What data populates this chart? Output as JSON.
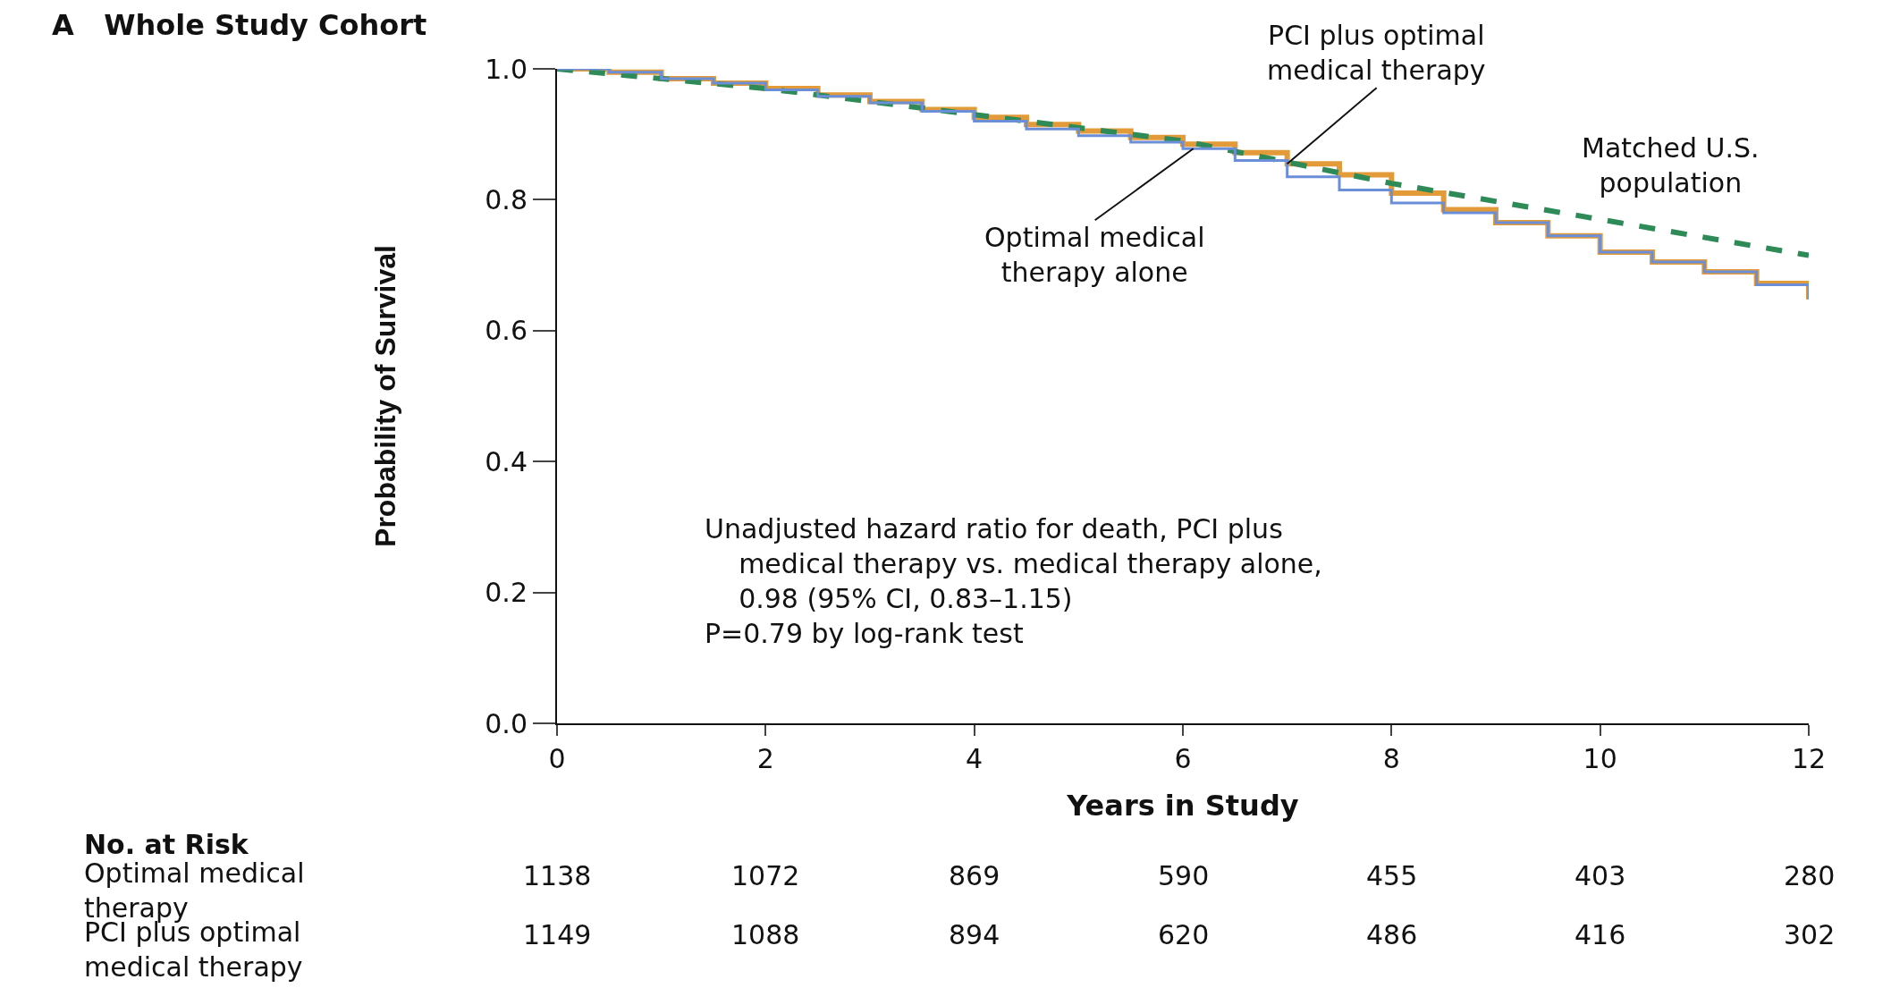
{
  "chart_data": {
    "type": "step",
    "title": "A   Whole Study Cohort",
    "xlabel": "Years in Study",
    "ylabel": "Probability of Survival",
    "x": [
      0,
      0.5,
      1,
      1.5,
      2,
      2.5,
      3,
      3.5,
      4,
      4.5,
      5,
      5.5,
      6,
      6.5,
      7,
      7.5,
      8,
      8.5,
      9,
      9.5,
      10,
      10.5,
      11,
      11.5,
      12
    ],
    "series": [
      {
        "color": "#6a8fd8",
        "values": [
          1,
          0.995,
          0.985,
          0.978,
          0.968,
          0.958,
          0.948,
          0.935,
          0.92,
          0.908,
          0.898,
          0.888,
          0.878,
          0.86,
          0.835,
          0.815,
          0.795,
          0.78,
          0.765,
          0.745,
          0.72,
          0.705,
          0.69,
          0.67,
          0.648
        ]
      },
      {
        "color": "#e39b3a",
        "values": [
          1,
          0.995,
          0.985,
          0.978,
          0.97,
          0.96,
          0.95,
          0.938,
          0.926,
          0.915,
          0.905,
          0.895,
          0.885,
          0.872,
          0.855,
          0.838,
          0.81,
          0.785,
          0.765,
          0.745,
          0.72,
          0.705,
          0.69,
          0.672,
          0.648
        ]
      },
      {
        "type": "line",
        "line_style": "dashed",
        "color": "#2e8b57",
        "x": [
          0,
          2,
          4,
          6,
          8,
          10,
          12
        ],
        "values": [
          1,
          0.97,
          0.93,
          0.89,
          0.825,
          0.77,
          0.715
        ]
      }
    ],
    "xlim": [
      0,
      12
    ],
    "xticks": [
      0,
      2,
      4,
      6,
      8,
      10,
      12
    ],
    "ylim": [
      0,
      1
    ],
    "yticks": [
      {
        "value": 0,
        "label": "0.0"
      },
      {
        "value": 0.2,
        "label": "0.2"
      },
      {
        "value": 0.4,
        "label": "0.4"
      },
      {
        "value": 0.6,
        "label": "0.6"
      },
      {
        "value": 0.8,
        "label": "0.8"
      },
      {
        "value": 1,
        "label": "1.0"
      }
    ],
    "grid": false,
    "marker": "none",
    "line_style": "solid",
    "annotations": [
      {
        "text": "Optimal medical\ntherapy alone",
        "x": 6.1,
        "y": 0.878
      },
      {
        "text": "PCI plus optimal\nmedical therapy",
        "x": 7,
        "y": 0.855
      },
      "Matched U.S.\npopulation",
      "Unadjusted hazard ratio for death, PCI plus\n    medical therapy vs. medical therapy alone,\n    0.98 (95% CI, 0.83–1.15)\nP=0.79 by log-rank test",
      "No. at Risk",
      "Optimal medical\ntherapy",
      "1138",
      "1072",
      "869",
      "590",
      "455",
      "403",
      "280",
      "PCI plus optimal\nmedical therapy",
      "1149",
      "1088",
      "894",
      "620",
      "486",
      "416",
      "302"
    ]
  }
}
